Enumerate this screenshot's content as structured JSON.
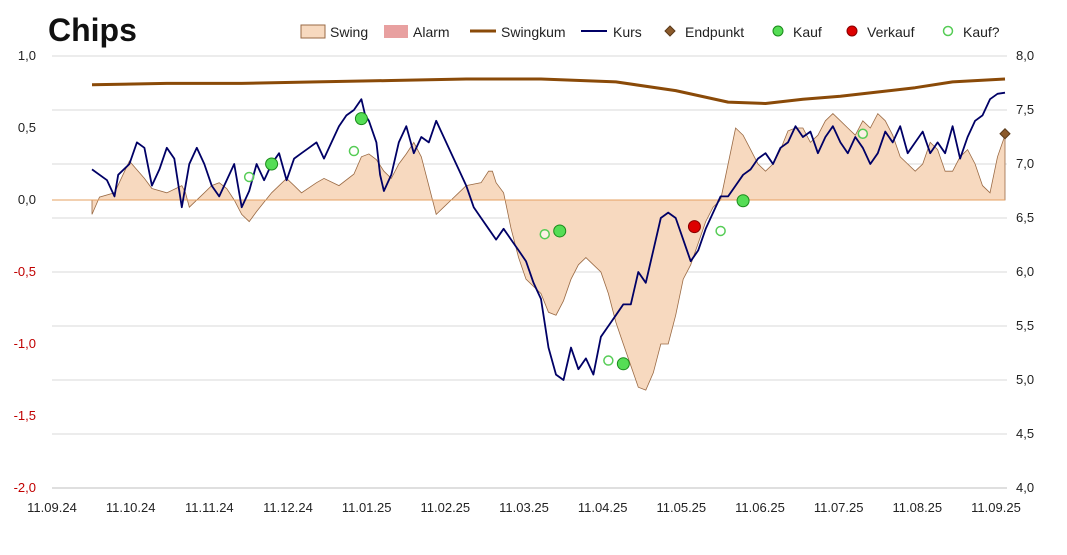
{
  "chart_data": {
    "type": "line",
    "title": "Chips",
    "x_labels": [
      "11.09.24",
      "11.10.24",
      "11.11.24",
      "11.12.24",
      "11.01.25",
      "11.02.25",
      "11.03.25",
      "11.04.25",
      "11.05.25",
      "11.06.25",
      "11.07.25",
      "11.08.25",
      "11.09.25"
    ],
    "left_axis": {
      "range": [
        -2.0,
        1.0
      ],
      "ticks": [
        "1,0",
        "0,5",
        "0,0",
        "-0,5",
        "-1,0",
        "-1,5",
        "-2,0"
      ],
      "tick_values": [
        1.0,
        0.5,
        0.0,
        -0.5,
        -1.0,
        -1.5,
        -2.0
      ]
    },
    "right_axis": {
      "range": [
        4.0,
        8.0
      ],
      "ticks": [
        "8,0",
        "7,5",
        "7,0",
        "6,5",
        "6,0",
        "5,5",
        "5,0",
        "4,5",
        "4,0"
      ],
      "tick_values": [
        8.0,
        7.5,
        7.0,
        6.5,
        6.0,
        5.5,
        5.0,
        4.5,
        4.0
      ]
    },
    "grid": true,
    "legend": {
      "placement": "top",
      "entries": [
        "Swing",
        "Alarm",
        "Swingkum",
        "Kurs",
        "Endpunkt",
        "Kauf",
        "Verkauf",
        "Kauf?"
      ]
    },
    "colors": {
      "swing_fill": "#f7d9bf",
      "swing_stroke": "#9a6a44",
      "alarm": "#e8a0a0",
      "swingkum": "#8a4a08",
      "kurs": "#000066",
      "endpunkt": "#8b5a2b",
      "kauf": "#55dd55",
      "verkauf": "#dd0000",
      "kauf_q": "#55cc55"
    },
    "series": [
      {
        "name": "Swing",
        "axis": "left",
        "points": [
          [
            0.0,
            -0.1
          ],
          [
            0.01,
            0.02
          ],
          [
            0.03,
            0.05
          ],
          [
            0.05,
            0.27
          ],
          [
            0.07,
            0.15
          ],
          [
            0.08,
            0.08
          ],
          [
            0.1,
            0.05
          ],
          [
            0.12,
            0.1
          ],
          [
            0.125,
            0.05
          ],
          [
            0.13,
            -0.05
          ],
          [
            0.15,
            0.05
          ],
          [
            0.16,
            0.1
          ],
          [
            0.17,
            0.12
          ],
          [
            0.18,
            0.08
          ],
          [
            0.19,
            0.0
          ],
          [
            0.2,
            -0.1
          ],
          [
            0.21,
            -0.15
          ],
          [
            0.22,
            -0.08
          ],
          [
            0.24,
            0.05
          ],
          [
            0.26,
            0.15
          ],
          [
            0.27,
            0.1
          ],
          [
            0.28,
            0.05
          ],
          [
            0.3,
            0.12
          ],
          [
            0.31,
            0.15
          ],
          [
            0.33,
            0.1
          ],
          [
            0.35,
            0.18
          ],
          [
            0.36,
            0.3
          ],
          [
            0.37,
            0.32
          ],
          [
            0.38,
            0.28
          ],
          [
            0.39,
            0.2
          ],
          [
            0.4,
            0.15
          ],
          [
            0.41,
            0.25
          ],
          [
            0.42,
            0.32
          ],
          [
            0.43,
            0.4
          ],
          [
            0.44,
            0.3
          ],
          [
            0.45,
            0.1
          ],
          [
            0.46,
            -0.1
          ],
          [
            0.47,
            -0.05
          ],
          [
            0.48,
            0.0
          ],
          [
            0.49,
            0.05
          ],
          [
            0.5,
            0.1
          ],
          [
            0.52,
            0.12
          ],
          [
            0.53,
            0.2
          ],
          [
            0.535,
            0.2
          ],
          [
            0.54,
            0.12
          ],
          [
            0.55,
            0.05
          ],
          [
            0.56,
            -0.2
          ],
          [
            0.57,
            -0.4
          ],
          [
            0.58,
            -0.55
          ],
          [
            0.6,
            -0.65
          ],
          [
            0.61,
            -0.78
          ],
          [
            0.62,
            -0.8
          ],
          [
            0.63,
            -0.7
          ],
          [
            0.64,
            -0.55
          ],
          [
            0.65,
            -0.45
          ],
          [
            0.66,
            -0.4
          ],
          [
            0.67,
            -0.45
          ],
          [
            0.68,
            -0.5
          ],
          [
            0.69,
            -0.65
          ],
          [
            0.7,
            -0.85
          ],
          [
            0.71,
            -1.0
          ],
          [
            0.72,
            -1.15
          ],
          [
            0.73,
            -1.3
          ],
          [
            0.74,
            -1.32
          ],
          [
            0.75,
            -1.2
          ],
          [
            0.76,
            -1.0
          ],
          [
            0.77,
            -1.0
          ],
          [
            0.78,
            -0.8
          ],
          [
            0.79,
            -0.55
          ],
          [
            0.8,
            -0.45
          ],
          [
            0.81,
            -0.3
          ],
          [
            0.82,
            -0.15
          ],
          [
            0.83,
            -0.05
          ],
          [
            0.84,
            0.0
          ],
          [
            0.85,
            0.25
          ],
          [
            0.86,
            0.5
          ],
          [
            0.87,
            0.45
          ],
          [
            0.88,
            0.35
          ],
          [
            0.89,
            0.25
          ],
          [
            0.9,
            0.2
          ],
          [
            0.91,
            0.25
          ],
          [
            0.92,
            0.35
          ],
          [
            0.93,
            0.48
          ],
          [
            0.94,
            0.5
          ],
          [
            0.95,
            0.5
          ],
          [
            0.96,
            0.4
          ],
          [
            0.97,
            0.45
          ],
          [
            0.98,
            0.55
          ],
          [
            0.99,
            0.6
          ],
          [
            1.0,
            0.55
          ],
          [
            1.01,
            0.5
          ],
          [
            1.02,
            0.45
          ],
          [
            1.03,
            0.55
          ],
          [
            1.04,
            0.5
          ],
          [
            1.05,
            0.6
          ],
          [
            1.06,
            0.55
          ],
          [
            1.07,
            0.45
          ],
          [
            1.08,
            0.3
          ],
          [
            1.09,
            0.25
          ],
          [
            1.1,
            0.2
          ],
          [
            1.11,
            0.25
          ],
          [
            1.12,
            0.4
          ],
          [
            1.13,
            0.35
          ],
          [
            1.14,
            0.2
          ],
          [
            1.15,
            0.2
          ],
          [
            1.16,
            0.3
          ],
          [
            1.17,
            0.35
          ],
          [
            1.18,
            0.25
          ],
          [
            1.19,
            0.1
          ],
          [
            1.2,
            0.05
          ],
          [
            1.21,
            0.3
          ],
          [
            1.22,
            0.45
          ]
        ]
      },
      {
        "name": "Swingkum",
        "axis": "left",
        "points": [
          [
            0.0,
            0.8
          ],
          [
            0.1,
            0.81
          ],
          [
            0.2,
            0.81
          ],
          [
            0.3,
            0.82
          ],
          [
            0.4,
            0.83
          ],
          [
            0.5,
            0.84
          ],
          [
            0.6,
            0.84
          ],
          [
            0.7,
            0.82
          ],
          [
            0.78,
            0.76
          ],
          [
            0.85,
            0.68
          ],
          [
            0.9,
            0.67
          ],
          [
            0.95,
            0.7
          ],
          [
            1.0,
            0.72
          ],
          [
            1.05,
            0.75
          ],
          [
            1.1,
            0.78
          ],
          [
            1.15,
            0.82
          ],
          [
            1.22,
            0.84
          ]
        ]
      },
      {
        "name": "Kurs",
        "axis": "right",
        "points": [
          [
            0.0,
            6.95
          ],
          [
            0.02,
            6.85
          ],
          [
            0.03,
            6.7
          ],
          [
            0.035,
            6.9
          ],
          [
            0.05,
            7.0
          ],
          [
            0.06,
            7.2
          ],
          [
            0.07,
            7.15
          ],
          [
            0.08,
            6.8
          ],
          [
            0.09,
            6.95
          ],
          [
            0.1,
            7.15
          ],
          [
            0.11,
            7.05
          ],
          [
            0.12,
            6.6
          ],
          [
            0.13,
            7.0
          ],
          [
            0.14,
            7.15
          ],
          [
            0.15,
            7.0
          ],
          [
            0.16,
            6.8
          ],
          [
            0.17,
            6.7
          ],
          [
            0.18,
            6.85
          ],
          [
            0.19,
            7.0
          ],
          [
            0.2,
            6.6
          ],
          [
            0.21,
            6.75
          ],
          [
            0.22,
            7.0
          ],
          [
            0.23,
            6.85
          ],
          [
            0.24,
            7.0
          ],
          [
            0.25,
            7.1
          ],
          [
            0.26,
            6.85
          ],
          [
            0.27,
            7.05
          ],
          [
            0.28,
            7.1
          ],
          [
            0.29,
            7.15
          ],
          [
            0.3,
            7.2
          ],
          [
            0.31,
            7.05
          ],
          [
            0.32,
            7.2
          ],
          [
            0.33,
            7.35
          ],
          [
            0.34,
            7.45
          ],
          [
            0.35,
            7.5
          ],
          [
            0.36,
            7.6
          ],
          [
            0.365,
            7.45
          ],
          [
            0.37,
            7.4
          ],
          [
            0.38,
            7.2
          ],
          [
            0.385,
            6.9
          ],
          [
            0.39,
            6.75
          ],
          [
            0.4,
            6.9
          ],
          [
            0.41,
            7.2
          ],
          [
            0.42,
            7.35
          ],
          [
            0.43,
            7.1
          ],
          [
            0.44,
            7.25
          ],
          [
            0.45,
            7.2
          ],
          [
            0.46,
            7.4
          ],
          [
            0.47,
            7.25
          ],
          [
            0.48,
            7.1
          ],
          [
            0.49,
            6.95
          ],
          [
            0.5,
            6.8
          ],
          [
            0.51,
            6.6
          ],
          [
            0.52,
            6.5
          ],
          [
            0.53,
            6.4
          ],
          [
            0.54,
            6.3
          ],
          [
            0.55,
            6.4
          ],
          [
            0.56,
            6.3
          ],
          [
            0.57,
            6.2
          ],
          [
            0.58,
            6.1
          ],
          [
            0.59,
            5.9
          ],
          [
            0.6,
            5.75
          ],
          [
            0.61,
            5.3
          ],
          [
            0.62,
            5.05
          ],
          [
            0.63,
            5.0
          ],
          [
            0.64,
            5.3
          ],
          [
            0.65,
            5.1
          ],
          [
            0.66,
            5.2
          ],
          [
            0.67,
            5.05
          ],
          [
            0.68,
            5.4
          ],
          [
            0.69,
            5.5
          ],
          [
            0.7,
            5.6
          ],
          [
            0.71,
            5.7
          ],
          [
            0.72,
            5.7
          ],
          [
            0.73,
            6.0
          ],
          [
            0.74,
            5.9
          ],
          [
            0.75,
            6.2
          ],
          [
            0.76,
            6.5
          ],
          [
            0.77,
            6.55
          ],
          [
            0.78,
            6.5
          ],
          [
            0.79,
            6.3
          ],
          [
            0.8,
            6.1
          ],
          [
            0.81,
            6.2
          ],
          [
            0.82,
            6.4
          ],
          [
            0.83,
            6.55
          ],
          [
            0.84,
            6.7
          ],
          [
            0.85,
            6.7
          ],
          [
            0.86,
            6.8
          ],
          [
            0.87,
            6.9
          ],
          [
            0.88,
            6.95
          ],
          [
            0.89,
            7.05
          ],
          [
            0.9,
            7.1
          ],
          [
            0.91,
            7.0
          ],
          [
            0.92,
            7.15
          ],
          [
            0.93,
            7.2
          ],
          [
            0.94,
            7.35
          ],
          [
            0.95,
            7.25
          ],
          [
            0.96,
            7.3
          ],
          [
            0.97,
            7.1
          ],
          [
            0.98,
            7.25
          ],
          [
            0.99,
            7.35
          ],
          [
            1.0,
            7.2
          ],
          [
            1.01,
            7.1
          ],
          [
            1.02,
            7.25
          ],
          [
            1.03,
            7.15
          ],
          [
            1.04,
            7.0
          ],
          [
            1.05,
            7.1
          ],
          [
            1.06,
            7.3
          ],
          [
            1.07,
            7.2
          ],
          [
            1.08,
            7.35
          ],
          [
            1.09,
            7.1
          ],
          [
            1.1,
            7.2
          ],
          [
            1.11,
            7.3
          ],
          [
            1.12,
            7.1
          ],
          [
            1.13,
            7.2
          ],
          [
            1.14,
            7.1
          ],
          [
            1.15,
            7.35
          ],
          [
            1.16,
            7.05
          ],
          [
            1.17,
            7.25
          ],
          [
            1.18,
            7.4
          ],
          [
            1.19,
            7.45
          ],
          [
            1.2,
            7.6
          ],
          [
            1.21,
            7.65
          ],
          [
            1.22,
            7.66
          ]
        ]
      }
    ],
    "markers": [
      {
        "type": "Kauf?",
        "axis": "right",
        "x": 0.21,
        "y": 6.88
      },
      {
        "type": "Kauf",
        "axis": "right",
        "x": 0.24,
        "y": 7.0
      },
      {
        "type": "Kauf?",
        "axis": "right",
        "x": 0.35,
        "y": 7.12
      },
      {
        "type": "Kauf",
        "axis": "right",
        "x": 0.36,
        "y": 7.42
      },
      {
        "type": "Kauf?",
        "axis": "right",
        "x": 0.605,
        "y": 6.35
      },
      {
        "type": "Kauf",
        "axis": "right",
        "x": 0.625,
        "y": 6.38
      },
      {
        "type": "Kauf?",
        "axis": "right",
        "x": 0.69,
        "y": 5.18
      },
      {
        "type": "Kauf",
        "axis": "right",
        "x": 0.71,
        "y": 5.15
      },
      {
        "type": "Verkauf",
        "axis": "right",
        "x": 0.805,
        "y": 6.42
      },
      {
        "type": "Kauf?",
        "axis": "right",
        "x": 0.84,
        "y": 6.38
      },
      {
        "type": "Kauf",
        "axis": "right",
        "x": 0.87,
        "y": 6.66
      },
      {
        "type": "Kauf?",
        "axis": "right",
        "x": 1.03,
        "y": 7.28
      },
      {
        "type": "Endpunkt",
        "axis": "right",
        "x": 1.22,
        "y": 7.28
      }
    ]
  }
}
